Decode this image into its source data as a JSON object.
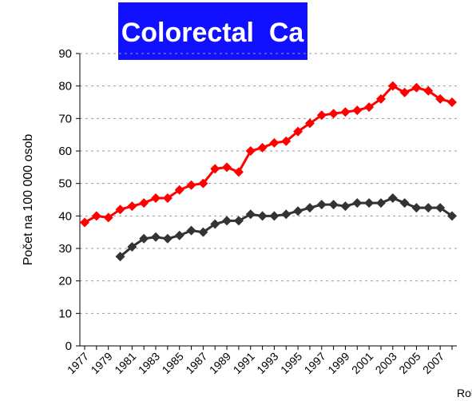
{
  "chart_data": {
    "type": "line",
    "title": "Colorectal  Ca",
    "y_label": "Počet na 100 000 osob",
    "x_label": "Rok",
    "categories": [
      "1977",
      null,
      "1979",
      null,
      "1981",
      null,
      "1983",
      null,
      "1985",
      null,
      "1987",
      null,
      "1989",
      null,
      "1991",
      null,
      "1993",
      null,
      "1995",
      null,
      "1997",
      null,
      "1999",
      null,
      "2001",
      null,
      "2003",
      null,
      "2005",
      null,
      "2007",
      null
    ],
    "series": [
      {
        "color": "#ff0000",
        "values": [
          38,
          40,
          39.5,
          42,
          43,
          44,
          45.5,
          45.5,
          48,
          49.5,
          50,
          54.5,
          55,
          53.5,
          60,
          61,
          62.5,
          63,
          66,
          68.5,
          71,
          71.5,
          72,
          72.5,
          73.5,
          76,
          80,
          78,
          79.5,
          78.5,
          76,
          75
        ]
      },
      {
        "color": "#333333",
        "values": [
          null,
          null,
          null,
          27.5,
          30.5,
          33,
          33.5,
          33,
          34,
          35.5,
          35,
          37.5,
          38.5,
          38.5,
          40.5,
          40,
          40,
          40.5,
          41.5,
          42.5,
          43.5,
          43.5,
          43,
          44,
          44,
          44,
          45.5,
          44,
          42.5,
          42.5,
          42.5,
          40
        ]
      }
    ],
    "ylim": [
      0,
      90
    ],
    "yticks": [
      0,
      10,
      20,
      30,
      40,
      50,
      60,
      70,
      80,
      90
    ],
    "grid": true
  }
}
